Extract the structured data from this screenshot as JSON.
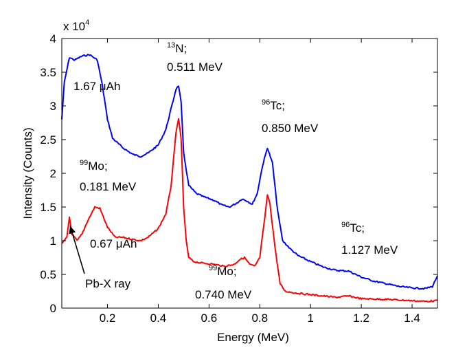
{
  "chart_data": {
    "type": "line",
    "xlabel": "Energy (MeV)",
    "ylabel": "Intensity (Counts)",
    "xlim": [
      0.02,
      1.5
    ],
    "ylim": [
      0,
      40000
    ],
    "y_multiplier_label": {
      "base": "x 10",
      "exponent": "4"
    },
    "xticks": [
      {
        "value": 0.2,
        "label": "0.2"
      },
      {
        "value": 0.4,
        "label": "0.4"
      },
      {
        "value": 0.6,
        "label": "0.6"
      },
      {
        "value": 0.8,
        "label": "0.8"
      },
      {
        "value": 1.0,
        "label": "1"
      },
      {
        "value": 1.2,
        "label": "1.2"
      },
      {
        "value": 1.4,
        "label": "1.4"
      }
    ],
    "yticks": [
      {
        "value": 0,
        "label": "0"
      },
      {
        "value": 5000,
        "label": "0.5"
      },
      {
        "value": 10000,
        "label": "1"
      },
      {
        "value": 15000,
        "label": "1.5"
      },
      {
        "value": 20000,
        "label": "2"
      },
      {
        "value": 25000,
        "label": "2.5"
      },
      {
        "value": 30000,
        "label": "3"
      },
      {
        "value": 35000,
        "label": "3.5"
      },
      {
        "value": 40000,
        "label": "4"
      }
    ],
    "grid": false,
    "series": [
      {
        "name": "1.67 μAh",
        "color": "#0000ff",
        "x": [
          0.02,
          0.03,
          0.05,
          0.07,
          0.1,
          0.13,
          0.16,
          0.18,
          0.2,
          0.22,
          0.26,
          0.3,
          0.33,
          0.36,
          0.4,
          0.43,
          0.45,
          0.47,
          0.48,
          0.49,
          0.5,
          0.52,
          0.55,
          0.58,
          0.62,
          0.65,
          0.68,
          0.71,
          0.73,
          0.75,
          0.77,
          0.79,
          0.81,
          0.83,
          0.85,
          0.87,
          0.89,
          0.92,
          0.95,
          1.0,
          1.05,
          1.1,
          1.15,
          1.2,
          1.25,
          1.3,
          1.35,
          1.4,
          1.45,
          1.48,
          1.5
        ],
        "y": [
          28000,
          33500,
          37200,
          36800,
          37400,
          37600,
          36800,
          33000,
          28000,
          25200,
          23800,
          22800,
          22500,
          23000,
          24200,
          26500,
          29500,
          32500,
          33000,
          30500,
          23000,
          18200,
          17000,
          16500,
          16000,
          15300,
          15000,
          15600,
          16200,
          15900,
          15400,
          17000,
          21000,
          23800,
          21500,
          14500,
          10000,
          8800,
          7800,
          6900,
          6100,
          5600,
          5500,
          4600,
          4000,
          3600,
          3200,
          3000,
          2900,
          3200,
          4800
        ]
      },
      {
        "name": "0.67 μAh",
        "color": "#ff0000",
        "x": [
          0.02,
          0.04,
          0.05,
          0.06,
          0.08,
          0.1,
          0.12,
          0.15,
          0.17,
          0.2,
          0.23,
          0.26,
          0.3,
          0.33,
          0.36,
          0.4,
          0.43,
          0.45,
          0.46,
          0.47,
          0.48,
          0.49,
          0.5,
          0.51,
          0.52,
          0.54,
          0.57,
          0.62,
          0.66,
          0.7,
          0.72,
          0.74,
          0.76,
          0.78,
          0.8,
          0.82,
          0.83,
          0.84,
          0.86,
          0.88,
          0.9,
          0.95,
          1.0,
          1.05,
          1.1,
          1.15,
          1.2,
          1.3,
          1.4,
          1.45,
          1.5
        ],
        "y": [
          9500,
          10500,
          13500,
          11000,
          10000,
          11000,
          12800,
          15000,
          14800,
          12000,
          10500,
          10500,
          10200,
          10000,
          10500,
          11800,
          14000,
          18000,
          22000,
          26000,
          28200,
          25000,
          15000,
          10000,
          7500,
          6900,
          6700,
          6500,
          6200,
          6500,
          7200,
          7500,
          6500,
          6200,
          7500,
          13500,
          16800,
          15500,
          9000,
          3600,
          2500,
          2200,
          2000,
          1800,
          1600,
          1800,
          1400,
          1300,
          1100,
          1000,
          1100
        ]
      }
    ],
    "annotations": [
      {
        "id": "n13",
        "sup": "13",
        "text": "N;",
        "line2": "0.511 MeV"
      },
      {
        "id": "tc96a",
        "sup": "96",
        "text": "Tc;",
        "line2": "0.850 MeV"
      },
      {
        "id": "mo99a",
        "sup": "99",
        "text": "Mo;",
        "line2": "0.181 MeV"
      },
      {
        "id": "tc96b",
        "sup": "96",
        "text": "Tc;",
        "line2": "1.127 MeV"
      },
      {
        "id": "mo99b",
        "sup": "99",
        "text": "Mo;",
        "line2": "0.740 MeV"
      },
      {
        "id": "pbx",
        "text": "Pb-X ray"
      },
      {
        "id": "blue_label",
        "text": "1.67 μAh"
      },
      {
        "id": "red_label",
        "text": "0.67 μAh"
      }
    ]
  }
}
